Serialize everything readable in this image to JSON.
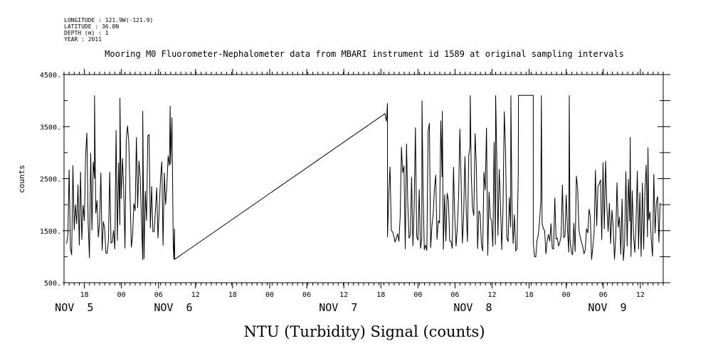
{
  "header_info": [
    "LONGITUDE : 121.9W(-121.9)",
    "LATITUDE : 36.8N",
    "DEPTH (m) : 1",
    "YEAR : 2011"
  ],
  "chart_data": {
    "type": "line",
    "title": "Mooring M0 Fluorometer-Nephalometer data from MBARI instrument id 1589 at original sampling intervals",
    "xlabel": "NTU (Turbidity) Signal (counts)",
    "ylabel": "counts",
    "ylim": [
      500,
      4500
    ],
    "y_ticks": [
      "4500.",
      "3500.",
      "2500.",
      "1500.",
      "500."
    ],
    "x_range_hours": [
      0,
      118
    ],
    "x_ticks": [
      "18",
      "00",
      "06",
      "12",
      "18",
      "00",
      "06",
      "12",
      "18",
      "00",
      "06",
      "12",
      "18",
      "00",
      "06",
      "12"
    ],
    "day_labels": [
      "NOV  5",
      "NOV  6",
      "NOV  7",
      "NOV  8",
      "NOV  9"
    ],
    "grid": false,
    "series": [
      {
        "color": "#000000",
        "segments": [
          {
            "start": 0.5,
            "end": 21.8,
            "seed": 11,
            "base": 1500,
            "amp": 2600,
            "extra": [
              [
                6.0,
                4100
              ],
              [
                11.0,
                4050
              ],
              [
                15.5,
                3800
              ],
              [
                20.9,
                3900
              ],
              [
                21.6,
                950
              ]
            ]
          },
          {
            "start": 21.8,
            "end": 63.7,
            "linear": [
              [
                21.8,
                950
              ],
              [
                63.2,
                3750
              ],
              [
                63.5,
                3600
              ],
              [
                63.7,
                3950
              ]
            ]
          },
          {
            "start": 63.7,
            "end": 89.5,
            "seed": 23,
            "base": 1600,
            "amp": 2550,
            "extra": [
              [
                70.5,
                4000
              ],
              [
                74.5,
                3800
              ],
              [
                80.0,
                4100
              ],
              [
                85.0,
                4100
              ],
              [
                88.0,
                4100
              ]
            ]
          },
          {
            "start": 89.5,
            "end": 92.4,
            "linear": [
              [
                89.5,
                4100
              ],
              [
                92.4,
                4100
              ]
            ]
          },
          {
            "start": 92.4,
            "end": 117.5,
            "seed": 37,
            "base": 1500,
            "amp": 1800,
            "extra": [
              [
                94.0,
                4100
              ],
              [
                99.5,
                4100
              ],
              [
                111.5,
                3300
              ],
              [
                115.0,
                3100
              ]
            ]
          }
        ]
      }
    ]
  }
}
